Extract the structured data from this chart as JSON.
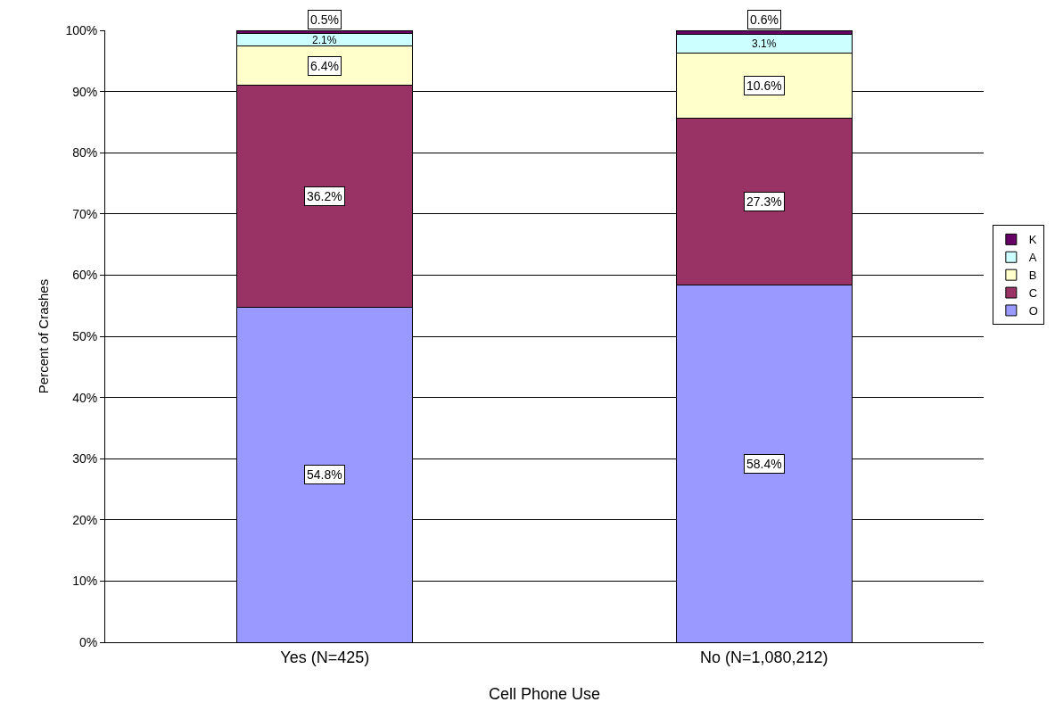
{
  "chart_data": {
    "type": "bar",
    "stacked": true,
    "xlabel": "Cell Phone Use",
    "ylabel": "Percent of Crashes",
    "categories": [
      "Yes (N=425)",
      "No (N=1,080,212)"
    ],
    "series": [
      {
        "name": "O",
        "color": "#9999ff",
        "values": [
          54.8,
          58.4
        ],
        "value_labels": [
          "54.8%",
          "58.4%"
        ]
      },
      {
        "name": "C",
        "color": "#993366",
        "values": [
          36.2,
          27.3
        ],
        "value_labels": [
          "36.2%",
          "27.3%"
        ]
      },
      {
        "name": "B",
        "color": "#ffffcc",
        "values": [
          6.4,
          10.6
        ],
        "value_labels": [
          "6.4%",
          "10.6%"
        ]
      },
      {
        "name": "A",
        "color": "#ccffff",
        "values": [
          2.1,
          3.1
        ],
        "value_labels": [
          "2.1%",
          "3.1%"
        ]
      },
      {
        "name": "K",
        "color": "#660066",
        "values": [
          0.5,
          0.6
        ],
        "value_labels": [
          "0.5%",
          "0.6%"
        ]
      }
    ],
    "ylim": [
      0,
      100
    ],
    "yticks": [
      {
        "value": 0,
        "label": "0%"
      },
      {
        "value": 10,
        "label": "10%"
      },
      {
        "value": 20,
        "label": "20%"
      },
      {
        "value": 30,
        "label": "30%"
      },
      {
        "value": 40,
        "label": "40%"
      },
      {
        "value": 50,
        "label": "50%"
      },
      {
        "value": 60,
        "label": "60%"
      },
      {
        "value": 70,
        "label": "70%"
      },
      {
        "value": 80,
        "label": "80%"
      },
      {
        "value": 90,
        "label": "90%"
      },
      {
        "value": 100,
        "label": "100%"
      }
    ],
    "grid": "y",
    "legend": "right"
  }
}
